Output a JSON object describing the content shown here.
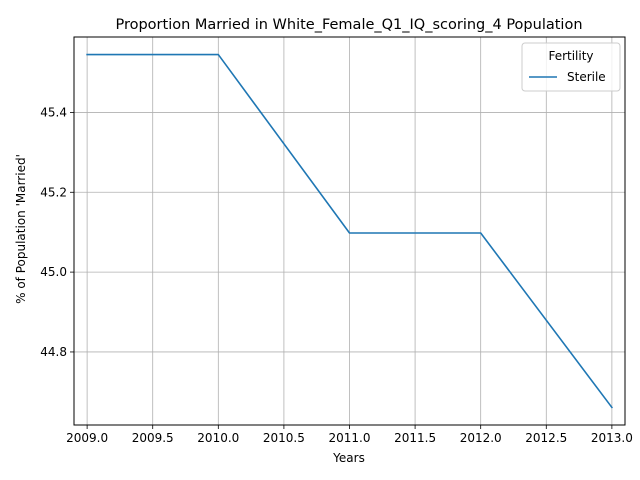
{
  "chart_data": {
    "type": "line",
    "title": "Proportion Married in White_Female_Q1_IQ_scoring_4 Population",
    "xlabel": "Years",
    "ylabel": "% of Population 'Married'",
    "x": [
      2009,
      2010,
      2011,
      2012,
      2013
    ],
    "series": [
      {
        "name": "Sterile",
        "values": [
          45.545,
          45.545,
          45.098,
          45.098,
          44.661
        ],
        "color": "#1f77b4"
      }
    ],
    "xlim": [
      2008.9,
      2013.1
    ],
    "ylim": [
      44.617,
      45.589
    ],
    "xticks": [
      "2009.0",
      "2009.5",
      "2010.0",
      "2010.5",
      "2011.0",
      "2011.5",
      "2012.0",
      "2012.5",
      "2013.0"
    ],
    "yticks": [
      "44.8",
      "45.0",
      "45.2",
      "45.4"
    ],
    "grid": true,
    "legend": {
      "title": "Fertility",
      "placement": "top-right"
    }
  }
}
